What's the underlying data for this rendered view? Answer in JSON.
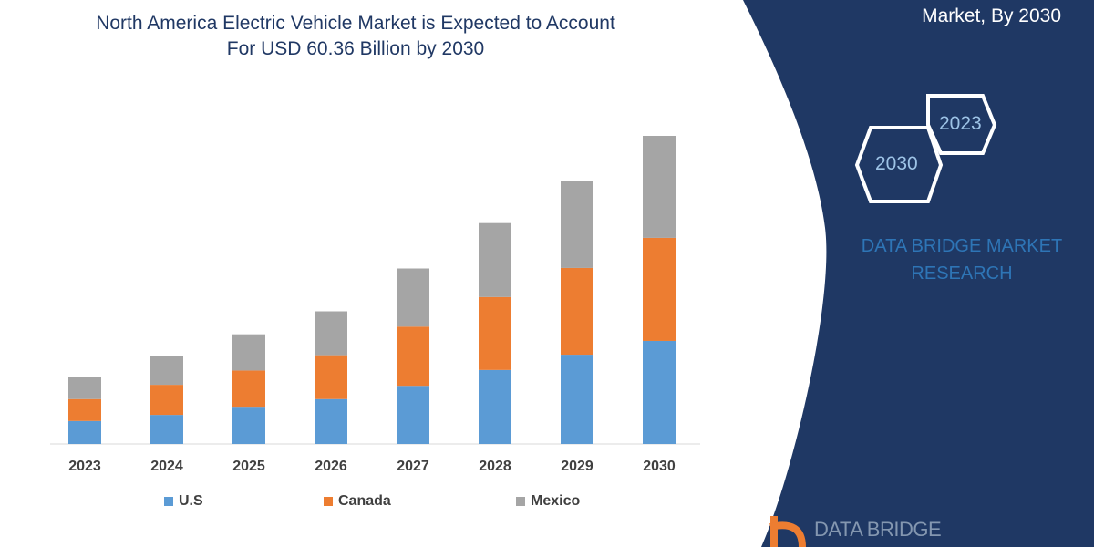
{
  "header": {
    "title_line1": "North America Electric Vehicle Market is Expected to Account",
    "title_line2": "For USD 60.36 Billion by 2030"
  },
  "side_panel": {
    "title": "Market, By 2030",
    "hex_years": [
      "2023",
      "2030"
    ],
    "brand_line1": "DATA BRIDGE MARKET",
    "brand_line2": "RESEARCH",
    "logo_text": "DATA BRIDGE",
    "color": "#1f3864"
  },
  "chart_data": {
    "type": "bar",
    "stacked": true,
    "title": "North America Electric Vehicle Market is Expected to Account For USD 60.36 Billion by 2030",
    "categories": [
      "2023",
      "2024",
      "2025",
      "2026",
      "2027",
      "2028",
      "2029",
      "2030"
    ],
    "series": [
      {
        "name": "U.S",
        "color": "#5b9bd5",
        "values": [
          4.5,
          5.7,
          7.3,
          8.8,
          11.4,
          14.5,
          17.5,
          20.2
        ]
      },
      {
        "name": "Canada",
        "color": "#ed7d31",
        "values": [
          4.3,
          5.9,
          7.1,
          8.6,
          11.6,
          14.3,
          17.0,
          20.2
        ]
      },
      {
        "name": "Mexico",
        "color": "#a5a5a5",
        "values": [
          4.3,
          5.7,
          7.1,
          8.6,
          11.4,
          14.5,
          17.1,
          20.0
        ]
      }
    ],
    "xlabel": "",
    "ylabel": "",
    "y_axis_visible": false,
    "grid": false,
    "legend": "bottom"
  }
}
